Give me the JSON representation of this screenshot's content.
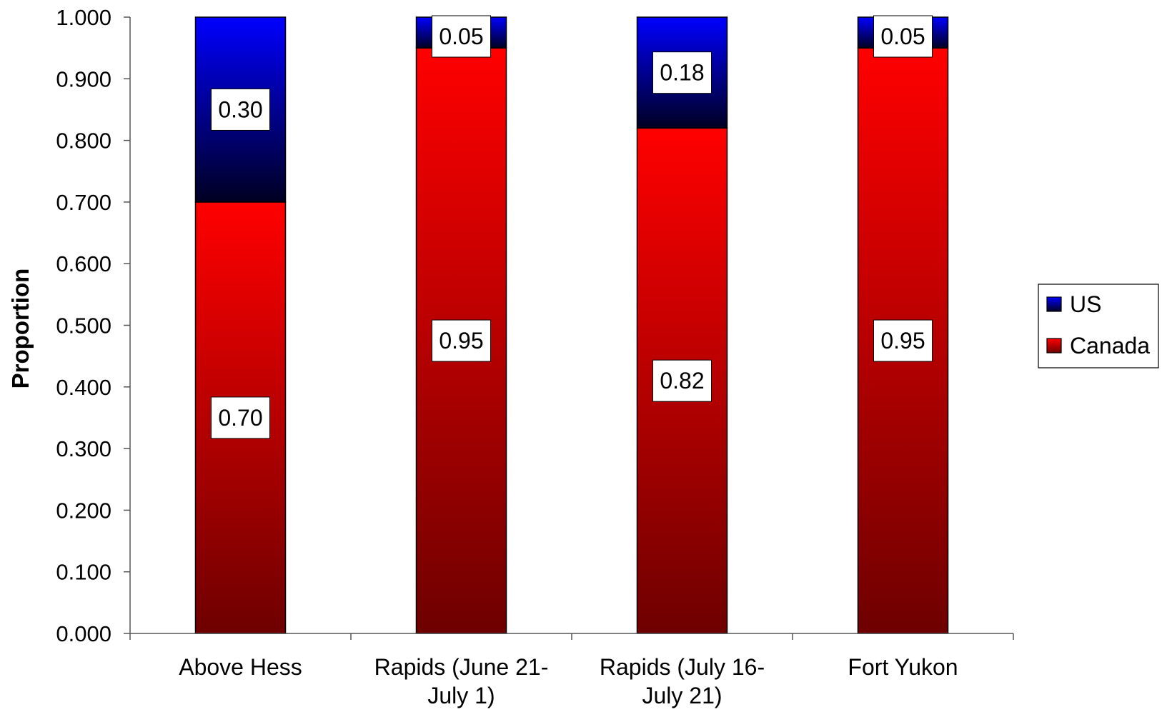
{
  "chart_data": {
    "type": "bar",
    "stacked": true,
    "categories": [
      [
        "Above Hess"
      ],
      [
        "Rapids (June 21-",
        "July 1)"
      ],
      [
        "Rapids (July 16-",
        "July 21)"
      ],
      [
        "Fort Yukon"
      ]
    ],
    "series": [
      {
        "name": "Canada",
        "values": [
          0.7,
          0.95,
          0.82,
          0.95
        ],
        "labels": [
          "0.70",
          "0.95",
          "0.82",
          "0.95"
        ],
        "color": "#ff0000",
        "color_dark": "#6e0000"
      },
      {
        "name": "US",
        "values": [
          0.3,
          0.05,
          0.18,
          0.05
        ],
        "labels": [
          "0.30",
          "0.05",
          "0.18",
          "0.05"
        ],
        "color": "#0000ff",
        "color_dark": "#000022"
      }
    ],
    "ylabel": "Proportion",
    "ylim": [
      0,
      1
    ],
    "yticks": [
      "0.000",
      "0.100",
      "0.200",
      "0.300",
      "0.400",
      "0.500",
      "0.600",
      "0.700",
      "0.800",
      "0.900",
      "1.000"
    ],
    "legend": {
      "position": "right",
      "entries": [
        "US",
        "Canada"
      ]
    },
    "grid": false
  }
}
